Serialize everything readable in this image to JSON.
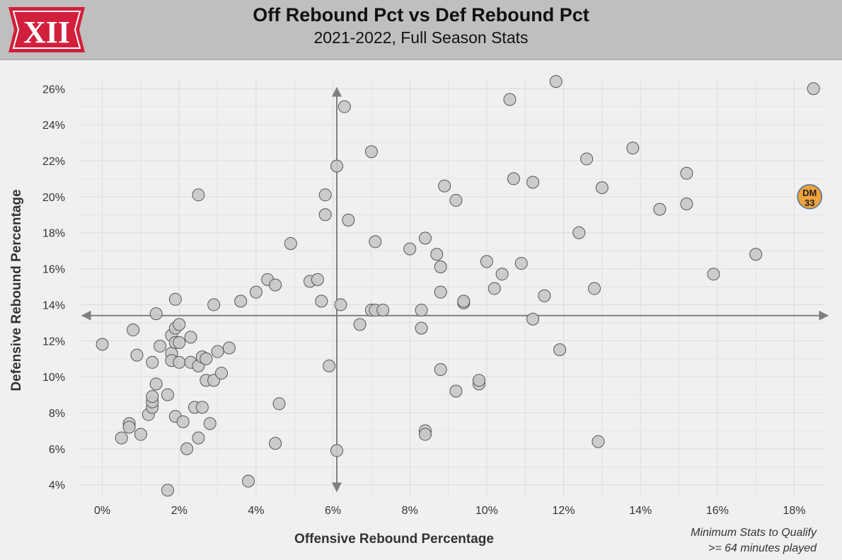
{
  "header": {
    "title": "Off Rebound Pct vs Def Rebound Pct",
    "subtitle": "2021-2022, Full Season Stats",
    "logo_text": "XII",
    "logo_color": "#d21f3c"
  },
  "note": {
    "line1": "Minimum Stats to Qualify",
    "line2": ">= 64 minutes played"
  },
  "colors": {
    "point_fill": "#c8c8c8",
    "point_stroke": "#555555",
    "highlight_fill": "#f0a13c",
    "highlight_stroke": "#4a6fa0",
    "reference_line": "#808080",
    "grid": "#dcdcdc"
  },
  "chart_data": {
    "type": "scatter",
    "xlabel": "Offensive Rebound Percentage",
    "ylabel": "Defensive Rebound Percentage",
    "xlim": [
      -0.6,
      18.8
    ],
    "ylim": [
      3.4,
      26.6
    ],
    "xticks": [
      0,
      2,
      4,
      6,
      8,
      10,
      12,
      14,
      16,
      18
    ],
    "yticks": [
      4,
      6,
      8,
      10,
      12,
      14,
      16,
      18,
      20,
      22,
      24,
      26
    ],
    "tick_format": "{v}%",
    "grid": true,
    "reference_lines": {
      "x": 6.1,
      "y": 13.4
    },
    "highlight": {
      "x": 18.4,
      "y": 20.0,
      "label_line1": "DM",
      "label_line2": "33"
    },
    "points": [
      [
        0.0,
        11.8
      ],
      [
        0.5,
        6.6
      ],
      [
        0.7,
        7.4
      ],
      [
        0.7,
        7.2
      ],
      [
        0.8,
        12.6
      ],
      [
        0.9,
        11.2
      ],
      [
        1.0,
        6.8
      ],
      [
        1.2,
        7.9
      ],
      [
        1.3,
        10.8
      ],
      [
        1.3,
        8.3
      ],
      [
        1.3,
        8.6
      ],
      [
        1.3,
        8.9
      ],
      [
        1.4,
        9.6
      ],
      [
        1.4,
        13.5
      ],
      [
        1.5,
        11.7
      ],
      [
        1.7,
        9.0
      ],
      [
        1.7,
        3.7
      ],
      [
        1.8,
        12.3
      ],
      [
        1.8,
        11.3
      ],
      [
        1.8,
        10.9
      ],
      [
        1.9,
        12.7
      ],
      [
        1.9,
        11.9
      ],
      [
        1.9,
        14.3
      ],
      [
        1.9,
        7.8
      ],
      [
        2.0,
        12.9
      ],
      [
        2.0,
        11.9
      ],
      [
        2.0,
        10.8
      ],
      [
        2.1,
        7.5
      ],
      [
        2.2,
        6.0
      ],
      [
        2.3,
        12.2
      ],
      [
        2.3,
        10.8
      ],
      [
        2.4,
        8.3
      ],
      [
        2.5,
        20.1
      ],
      [
        2.5,
        6.6
      ],
      [
        2.5,
        10.6
      ],
      [
        2.6,
        11.1
      ],
      [
        2.6,
        8.3
      ],
      [
        2.7,
        11.0
      ],
      [
        2.7,
        9.8
      ],
      [
        2.8,
        7.4
      ],
      [
        2.9,
        14.0
      ],
      [
        2.9,
        9.8
      ],
      [
        3.0,
        11.4
      ],
      [
        3.1,
        10.2
      ],
      [
        3.3,
        11.6
      ],
      [
        3.6,
        14.2
      ],
      [
        3.8,
        4.2
      ],
      [
        4.0,
        14.7
      ],
      [
        4.3,
        15.4
      ],
      [
        4.5,
        15.1
      ],
      [
        4.5,
        6.3
      ],
      [
        4.6,
        8.5
      ],
      [
        4.9,
        17.4
      ],
      [
        5.4,
        15.3
      ],
      [
        5.6,
        15.4
      ],
      [
        5.7,
        14.2
      ],
      [
        5.8,
        20.1
      ],
      [
        5.8,
        19.0
      ],
      [
        5.9,
        10.6
      ],
      [
        6.1,
        5.9
      ],
      [
        6.1,
        21.7
      ],
      [
        6.2,
        14.0
      ],
      [
        6.3,
        25.0
      ],
      [
        6.4,
        18.7
      ],
      [
        6.7,
        12.9
      ],
      [
        7.0,
        22.5
      ],
      [
        7.0,
        13.7
      ],
      [
        7.1,
        17.5
      ],
      [
        7.1,
        13.7
      ],
      [
        7.3,
        13.7
      ],
      [
        8.0,
        17.1
      ],
      [
        8.3,
        13.7
      ],
      [
        8.3,
        12.7
      ],
      [
        8.4,
        17.7
      ],
      [
        8.4,
        7.0
      ],
      [
        8.4,
        6.8
      ],
      [
        8.7,
        16.8
      ],
      [
        8.8,
        16.1
      ],
      [
        8.8,
        14.7
      ],
      [
        8.8,
        10.4
      ],
      [
        8.9,
        20.6
      ],
      [
        9.2,
        19.8
      ],
      [
        9.2,
        9.2
      ],
      [
        9.4,
        14.1
      ],
      [
        9.4,
        14.2
      ],
      [
        9.8,
        9.6
      ],
      [
        9.8,
        9.8
      ],
      [
        10.0,
        16.4
      ],
      [
        10.2,
        14.9
      ],
      [
        10.4,
        15.7
      ],
      [
        10.6,
        25.4
      ],
      [
        10.7,
        21.0
      ],
      [
        10.9,
        16.3
      ],
      [
        11.2,
        20.8
      ],
      [
        11.2,
        13.2
      ],
      [
        11.5,
        14.5
      ],
      [
        11.8,
        26.4
      ],
      [
        11.9,
        11.5
      ],
      [
        12.4,
        18.0
      ],
      [
        12.6,
        22.1
      ],
      [
        12.8,
        14.9
      ],
      [
        12.9,
        6.4
      ],
      [
        13.0,
        20.5
      ],
      [
        13.8,
        22.7
      ],
      [
        14.5,
        19.3
      ],
      [
        15.2,
        21.3
      ],
      [
        15.2,
        19.6
      ],
      [
        15.9,
        15.7
      ],
      [
        17.0,
        16.8
      ],
      [
        18.5,
        26.0
      ]
    ]
  }
}
